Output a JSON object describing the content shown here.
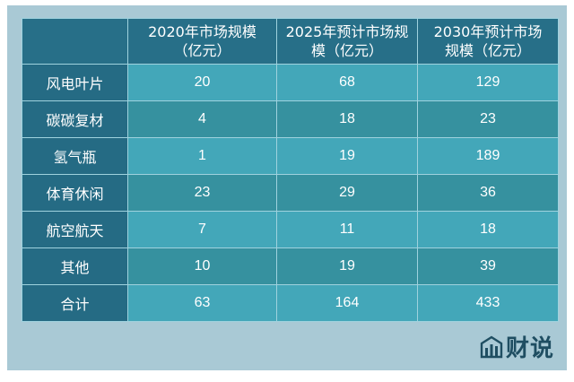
{
  "table": {
    "headers": [
      "",
      [
        "2020年市场规模",
        "（亿元）"
      ],
      [
        "2025年预计市场规",
        "模（亿元）"
      ],
      [
        "2030年预计市场",
        "规模（亿元）"
      ]
    ],
    "rows": [
      {
        "label": "风电叶片",
        "values": [
          "20",
          "68",
          "129"
        ]
      },
      {
        "label": "碳碳复材",
        "values": [
          "4",
          "18",
          "23"
        ]
      },
      {
        "label": "氢气瓶",
        "values": [
          "1",
          "19",
          "189"
        ]
      },
      {
        "label": "体育休闲",
        "values": [
          "23",
          "29",
          "36"
        ]
      },
      {
        "label": "航空航天",
        "values": [
          "7",
          "11",
          "18"
        ]
      },
      {
        "label": "其他",
        "values": [
          "10",
          "19",
          "39"
        ]
      },
      {
        "label": "合计",
        "values": [
          "63",
          "164",
          "433"
        ]
      }
    ]
  },
  "logo": {
    "text": "财说",
    "icon": "bar-chart-logo-icon",
    "color": "#1f4e62"
  }
}
